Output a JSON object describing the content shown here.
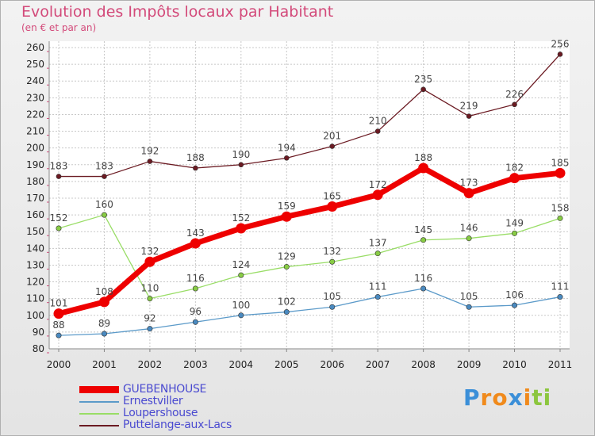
{
  "chart_data": {
    "type": "line",
    "title": "Evolution des Impôts locaux par Habitant",
    "subtitle": "(en € et par an)",
    "x": [
      "2000",
      "2001",
      "2002",
      "2003",
      "2004",
      "2005",
      "2006",
      "2007",
      "2008",
      "2009",
      "2010",
      "2011"
    ],
    "yticks": [
      80,
      90,
      100,
      110,
      120,
      130,
      140,
      150,
      160,
      170,
      180,
      190,
      200,
      210,
      220,
      230,
      240,
      250,
      260
    ],
    "ylim": [
      80,
      260
    ],
    "grid": true,
    "legend_position": "bottom-left",
    "series": [
      {
        "name": "Puttelange-aux-Lacs",
        "color": "#6b1a22",
        "values": [
          183,
          183,
          192,
          188,
          190,
          194,
          201,
          210,
          235,
          219,
          226,
          256
        ]
      },
      {
        "name": "GUEBENHOUSE",
        "color": "#ee0000",
        "values": [
          101,
          108,
          132,
          143,
          152,
          159,
          165,
          172,
          188,
          173,
          182,
          185
        ]
      },
      {
        "name": "Loupershouse",
        "color": "#99dd66",
        "values": [
          152,
          160,
          110,
          116,
          124,
          129,
          132,
          137,
          145,
          146,
          149,
          158
        ]
      },
      {
        "name": "Ernestviller",
        "color": "#5b9ac9",
        "values": [
          88,
          89,
          92,
          96,
          100,
          102,
          105,
          111,
          116,
          105,
          106,
          111
        ]
      }
    ],
    "legend": [
      {
        "name": "GUEBENHOUSE",
        "color": "#ee0000"
      },
      {
        "name": "Ernestviller",
        "color": "#5b9ac9"
      },
      {
        "name": "Loupershouse",
        "color": "#99dd66"
      },
      {
        "name": "Puttelange-aux-Lacs",
        "color": "#6b1a22"
      }
    ]
  },
  "logo": {
    "letters": [
      "P",
      "r",
      "o",
      "x",
      "i",
      "t",
      "i"
    ],
    "colors": [
      "#3b8fd8",
      "#f08a1c",
      "#f08a1c",
      "#3b8fd8",
      "#f08a1c",
      "#8cc63e",
      "#8cc63e"
    ]
  }
}
